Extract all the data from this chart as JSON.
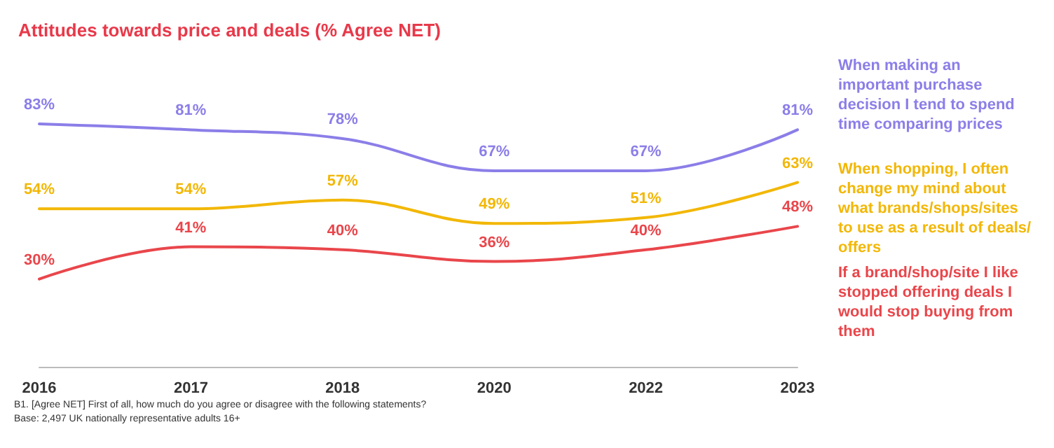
{
  "chart_data": {
    "type": "line",
    "title": "Attitudes towards price and deals (% Agree NET)",
    "categories": [
      "2016",
      "2017",
      "2018",
      "2020",
      "2022",
      "2023"
    ],
    "series": [
      {
        "name": "When making an important purchase decision I tend to spend time comparing prices",
        "color": "#8b7ee8",
        "values": [
          83,
          81,
          78,
          67,
          67,
          81
        ],
        "value_labels": [
          "83%",
          "81%",
          "78%",
          "67%",
          "67%",
          "81%"
        ]
      },
      {
        "name": "When shopping, I often change my mind about what brands/shops/sites to use as a result of deals/offers",
        "color": "#f2b705",
        "values": [
          54,
          54,
          57,
          49,
          51,
          63
        ],
        "value_labels": [
          "54%",
          "54%",
          "57%",
          "49%",
          "51%",
          "63%"
        ]
      },
      {
        "name": "If a brand/shop/site I like stopped offering deals I would stop buying from them",
        "color": "#e9464b",
        "values": [
          30,
          41,
          40,
          36,
          40,
          48
        ],
        "value_labels": [
          "30%",
          "41%",
          "40%",
          "36%",
          "40%",
          "48%"
        ]
      }
    ],
    "annotations": [
      "B1. [Agree NET] First of all, how much do you agree or disagree with the following statements?",
      "Base: 2,497 UK nationally representative adults 16+"
    ],
    "grid": false,
    "legend": false,
    "marker": "none",
    "line_style": "solid"
  }
}
